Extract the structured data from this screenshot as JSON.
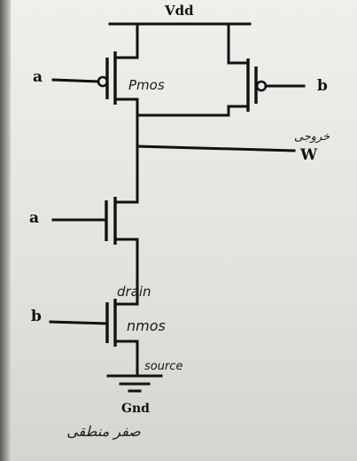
{
  "labels": {
    "vdd": "Vdd",
    "gnd": "Gnd",
    "input_a_top": "a",
    "input_b_top": "b",
    "input_a_bottom": "a",
    "input_b_bottom": "b",
    "output": "W",
    "output_note": "خروجی",
    "pmos": "Pmos",
    "nmos": "nmos",
    "drain": "drain",
    "source": "source",
    "gnd_note": "صفر منطقی"
  },
  "colors": {
    "ink": "#111111",
    "paper": "#e8e8e5",
    "edge": "#5a5a5a"
  }
}
